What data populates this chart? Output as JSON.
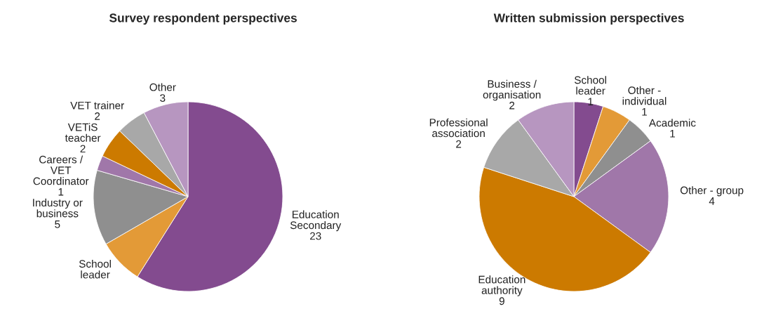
{
  "chart_data": [
    {
      "type": "pie",
      "title": "Survey respondent perspectives",
      "categories": [
        "Education\nSecondary",
        "School\nleader",
        "Industry or\nbusiness",
        "Careers /\nVET\nCoordinator",
        "VETiS\nteacher",
        "VET trainer",
        "Other"
      ],
      "values": [
        23,
        3,
        5,
        1,
        2,
        2,
        3
      ],
      "value_labels": [
        "23",
        null,
        "5",
        "1",
        "2",
        "2",
        "3"
      ],
      "colors": [
        "#834b8f",
        "#e39a37",
        "#8f8f8f",
        "#a077a9",
        "#cc7a00",
        "#a8a8a8",
        "#b796c0"
      ]
    },
    {
      "type": "pie",
      "title": "Written submission perspectives",
      "categories": [
        "School\nleader",
        "Other -\nindividual",
        "Academic",
        "Other - group",
        "Education\nauthority",
        "Professional\nassociation",
        "Business /\norganisation"
      ],
      "values": [
        1,
        1,
        1,
        4,
        9,
        2,
        2
      ],
      "value_labels": [
        "1",
        "1",
        "1",
        "4",
        "9",
        "2",
        "2"
      ],
      "colors": [
        "#834b8f",
        "#e39a37",
        "#8f8f8f",
        "#a077a9",
        "#cc7a00",
        "#a8a8a8",
        "#b796c0"
      ]
    }
  ]
}
